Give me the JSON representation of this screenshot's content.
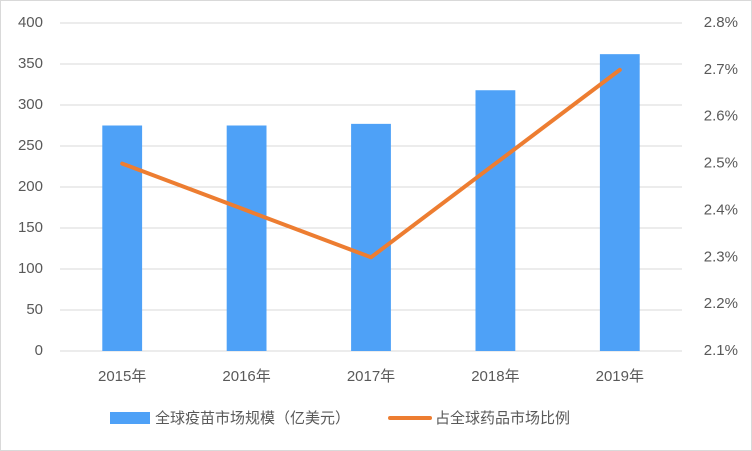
{
  "chart_data": {
    "type": "bar-line",
    "categories": [
      "2015年",
      "2016年",
      "2017年",
      "2018年",
      "2019年"
    ],
    "series": [
      {
        "name": "全球疫苗市场规模（亿美元）",
        "type": "bar",
        "color": "#4ea1f7",
        "values": [
          275,
          275,
          277,
          318,
          362
        ]
      },
      {
        "name": "占全球药品市场比例",
        "type": "line",
        "axis": "y2",
        "color": "#ed7d31",
        "values": [
          2.5,
          2.4,
          2.3,
          2.5,
          2.7
        ]
      }
    ],
    "ylim": [
      0,
      400
    ],
    "yticks": [
      0,
      50,
      100,
      150,
      200,
      250,
      300,
      350,
      400
    ],
    "y2lim": [
      2.1,
      2.8
    ],
    "y2ticks": [
      {
        "value": 2.1,
        "label": "2.1%"
      },
      {
        "value": 2.2,
        "label": "2.2%"
      },
      {
        "value": 2.3,
        "label": "2.3%"
      },
      {
        "value": 2.4,
        "label": "2.4%"
      },
      {
        "value": 2.5,
        "label": "2.5%"
      },
      {
        "value": 2.6,
        "label": "2.6%"
      },
      {
        "value": 2.7,
        "label": "2.7%"
      },
      {
        "value": 2.8,
        "label": "2.8%"
      }
    ],
    "grid": true,
    "legend": "bottom"
  }
}
